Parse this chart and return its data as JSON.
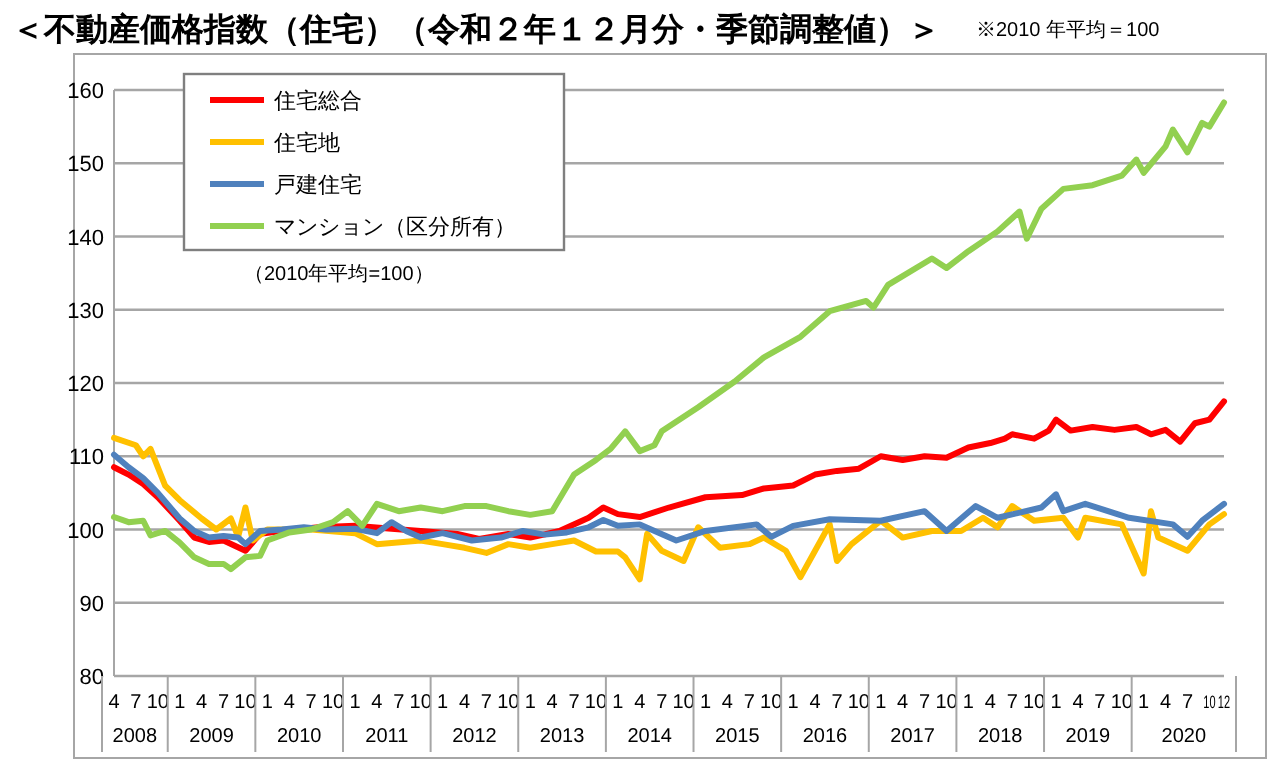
{
  "chart_data": {
    "type": "line",
    "title": "＜不動産価格指数（住宅）（令和２年１２月分・季節調整値）＞",
    "subtitle": "※2010 年平均＝100",
    "annotations": [
      "（2010年平均=100）",
      "2008",
      "2009",
      "2010",
      "2011",
      "2012",
      "2013",
      "2014",
      "2015",
      "2016",
      "2017",
      "2018",
      "2019",
      "2020"
    ],
    "xlim": [
      "2008-04",
      "2020-12"
    ],
    "xticks": [
      {
        "value": "2008-04",
        "label": "4"
      },
      {
        "value": "2008-07",
        "label": "7"
      },
      {
        "value": "2008-10",
        "label": "10"
      },
      {
        "value": "2009-01",
        "label": "1"
      },
      {
        "value": "2009-04",
        "label": "4"
      },
      {
        "value": "2009-07",
        "label": "7"
      },
      {
        "value": "2009-10",
        "label": "10"
      },
      {
        "value": "2010-01",
        "label": "1"
      },
      {
        "value": "2010-04",
        "label": "4"
      },
      {
        "value": "2010-07",
        "label": "7"
      },
      {
        "value": "2010-10",
        "label": "10"
      },
      {
        "value": "2011-01",
        "label": "1"
      },
      {
        "value": "2011-04",
        "label": "4"
      },
      {
        "value": "2011-07",
        "label": "7"
      },
      {
        "value": "2011-10",
        "label": "10"
      },
      {
        "value": "2012-01",
        "label": "1"
      },
      {
        "value": "2012-04",
        "label": "4"
      },
      {
        "value": "2012-07",
        "label": "7"
      },
      {
        "value": "2012-10",
        "label": "10"
      },
      {
        "value": "2013-01",
        "label": "1"
      },
      {
        "value": "2013-04",
        "label": "4"
      },
      {
        "value": "2013-07",
        "label": "7"
      },
      {
        "value": "2013-10",
        "label": "10"
      },
      {
        "value": "2014-01",
        "label": "1"
      },
      {
        "value": "2014-04",
        "label": "4"
      },
      {
        "value": "2014-07",
        "label": "7"
      },
      {
        "value": "2014-10",
        "label": "10"
      },
      {
        "value": "2015-01",
        "label": "1"
      },
      {
        "value": "2015-04",
        "label": "4"
      },
      {
        "value": "2015-07",
        "label": "7"
      },
      {
        "value": "2015-10",
        "label": "10"
      },
      {
        "value": "2016-01",
        "label": "1"
      },
      {
        "value": "2016-04",
        "label": "4"
      },
      {
        "value": "2016-07",
        "label": "7"
      },
      {
        "value": "2016-10",
        "label": "10"
      },
      {
        "value": "2017-01",
        "label": "1"
      },
      {
        "value": "2017-04",
        "label": "4"
      },
      {
        "value": "2017-07",
        "label": "7"
      },
      {
        "value": "2017-10",
        "label": "10"
      },
      {
        "value": "2018-01",
        "label": "1"
      },
      {
        "value": "2018-04",
        "label": "4"
      },
      {
        "value": "2018-07",
        "label": "7"
      },
      {
        "value": "2018-10",
        "label": "10"
      },
      {
        "value": "2019-01",
        "label": "1"
      },
      {
        "value": "2019-04",
        "label": "4"
      },
      {
        "value": "2019-07",
        "label": "7"
      },
      {
        "value": "2019-10",
        "label": "10"
      },
      {
        "value": "2020-01",
        "label": "1"
      },
      {
        "value": "2020-04",
        "label": "4"
      },
      {
        "value": "2020-07",
        "label": "7"
      },
      {
        "value": "2020-10",
        "label": "10"
      },
      {
        "value": "2020-12",
        "label": "12"
      }
    ],
    "ylim": [
      80,
      160
    ],
    "yticks": [
      80,
      90,
      100,
      110,
      120,
      130,
      140,
      150,
      160
    ],
    "grid": "y",
    "legend": "top left",
    "line_style": "solid",
    "series": [
      {
        "name": "住宅総合",
        "color": "#ff0000",
        "x": [
          "2008-04",
          "2008-06",
          "2008-08",
          "2008-10",
          "2009-01",
          "2009-03",
          "2009-05",
          "2009-07",
          "2009-10",
          "2009-12",
          "2010-03",
          "2010-08",
          "2011-01",
          "2011-06",
          "2011-10",
          "2012-03",
          "2012-06",
          "2012-10",
          "2013-01",
          "2013-05",
          "2013-09",
          "2013-11",
          "2014-01",
          "2014-04",
          "2014-08",
          "2015-01",
          "2015-06",
          "2015-09",
          "2016-01",
          "2016-04",
          "2016-07",
          "2016-10",
          "2017-01",
          "2017-04",
          "2017-07",
          "2017-10",
          "2018-01",
          "2018-04",
          "2018-06",
          "2018-07",
          "2018-10",
          "2018-12",
          "2019-01",
          "2019-03",
          "2019-06",
          "2019-09",
          "2019-12",
          "2020-02",
          "2020-04",
          "2020-06",
          "2020-08",
          "2020-10",
          "2020-12"
        ],
        "values": [
          108.5,
          107.5,
          106.2,
          104.4,
          101.2,
          98.9,
          98.3,
          98.5,
          97.1,
          99.4,
          99.8,
          100.3,
          100.5,
          100.1,
          99.8,
          99.4,
          98.7,
          99.4,
          98.9,
          99.8,
          101.6,
          103,
          102.1,
          101.7,
          103,
          104.4,
          104.7,
          105.6,
          106,
          107.5,
          108,
          108.3,
          110,
          109.5,
          110,
          109.8,
          111.2,
          111.8,
          112.4,
          113,
          112.4,
          113.5,
          115,
          113.5,
          114,
          113.6,
          114,
          113,
          113.6,
          112,
          114.5,
          115,
          117.5
        ]
      },
      {
        "name": "住宅地",
        "color": "#ffc000",
        "x": [
          "2008-04",
          "2008-07",
          "2008-08",
          "2008-09",
          "2008-11",
          "2009-01",
          "2009-04",
          "2009-06",
          "2009-08",
          "2009-09",
          "2009-10",
          "2009-11",
          "2010-01",
          "2010-07",
          "2011-01",
          "2011-04",
          "2011-10",
          "2012-01",
          "2012-04",
          "2012-07",
          "2012-10",
          "2013-01",
          "2013-04",
          "2013-07",
          "2013-10",
          "2014-01",
          "2014-02",
          "2014-04",
          "2014-05",
          "2014-07",
          "2014-10",
          "2014-12",
          "2015-03",
          "2015-07",
          "2015-09",
          "2015-12",
          "2016-02",
          "2016-04",
          "2016-06",
          "2016-07",
          "2016-09",
          "2017-01",
          "2017-04",
          "2017-08",
          "2017-12",
          "2018-03",
          "2018-05",
          "2018-07",
          "2018-10",
          "2019-02",
          "2019-04",
          "2019-05",
          "2019-10",
          "2020-01",
          "2020-02",
          "2020-03",
          "2020-07",
          "2020-10",
          "2020-12"
        ],
        "values": [
          112.5,
          111.5,
          110,
          111,
          106,
          104,
          101.5,
          100,
          101.5,
          99,
          103,
          98.5,
          100,
          100,
          99.5,
          98,
          98.5,
          98,
          97.5,
          96.8,
          98,
          97.5,
          98,
          98.5,
          97,
          97,
          96.2,
          93.2,
          99.4,
          97.1,
          95.7,
          100.3,
          97.5,
          98,
          98.9,
          97.1,
          93.5,
          97.1,
          100.7,
          95.7,
          98,
          101.2,
          98.9,
          99.8,
          99.8,
          101.6,
          100.3,
          103.2,
          101.2,
          101.6,
          98.9,
          101.6,
          100.7,
          94,
          102.5,
          98.9,
          97.1,
          100.7,
          102.1
        ]
      },
      {
        "name": "戸建住宅",
        "color": "#4f81bd",
        "x": [
          "2008-04",
          "2008-06",
          "2008-08",
          "2008-10",
          "2009-01",
          "2009-03",
          "2009-05",
          "2009-07",
          "2009-09",
          "2009-10",
          "2009-12",
          "2010-03",
          "2010-06",
          "2010-09",
          "2011-01",
          "2011-04",
          "2011-06",
          "2011-08",
          "2011-10",
          "2012-01",
          "2012-05",
          "2012-09",
          "2012-12",
          "2013-03",
          "2013-06",
          "2013-09",
          "2013-11",
          "2014-01",
          "2014-04",
          "2014-09",
          "2015-01",
          "2015-08",
          "2015-10",
          "2016-01",
          "2016-06",
          "2017-01",
          "2017-07",
          "2017-10",
          "2018-02",
          "2018-05",
          "2018-11",
          "2019-01",
          "2019-02",
          "2019-05",
          "2019-11",
          "2020-05",
          "2020-07",
          "2020-09",
          "2020-12"
        ],
        "values": [
          110.2,
          108.5,
          107,
          105,
          101.5,
          99.8,
          98.9,
          99.1,
          98.9,
          98,
          99.8,
          100,
          100.3,
          100,
          100.1,
          99.5,
          101,
          99.8,
          98.9,
          99.5,
          98.5,
          98.9,
          99.8,
          99.3,
          99.6,
          100.3,
          101.3,
          100.5,
          100.7,
          98.5,
          99.8,
          100.7,
          99,
          100.5,
          101.4,
          101.2,
          102.5,
          99.8,
          103.2,
          101.6,
          103,
          104.8,
          102.5,
          103.5,
          101.6,
          100.7,
          99,
          101.2,
          103.5
        ]
      },
      {
        "name": "マンション（区分所有）",
        "color": "#92d050",
        "x": [
          "2008-04",
          "2008-06",
          "2008-08",
          "2008-09",
          "2008-11",
          "2009-01",
          "2009-03",
          "2009-05",
          "2009-07",
          "2009-08",
          "2009-10",
          "2009-12",
          "2010-01",
          "2010-04",
          "2010-07",
          "2010-10",
          "2010-12",
          "2011-02",
          "2011-04",
          "2011-07",
          "2011-10",
          "2012-01",
          "2012-04",
          "2012-07",
          "2012-10",
          "2013-01",
          "2013-04",
          "2013-07",
          "2013-10",
          "2013-12",
          "2014-02",
          "2014-04",
          "2014-06",
          "2014-07",
          "2014-12",
          "2015-05",
          "2015-09",
          "2016-02",
          "2016-06",
          "2016-11",
          "2016-12",
          "2017-02",
          "2017-08",
          "2017-10",
          "2018-01",
          "2018-05",
          "2018-08",
          "2018-09",
          "2018-11",
          "2019-02",
          "2019-06",
          "2019-10",
          "2019-12",
          "2020-01",
          "2020-04",
          "2020-05",
          "2020-07",
          "2020-09",
          "2020-10",
          "2020-12"
        ],
        "values": [
          101.7,
          101,
          101.2,
          99.2,
          99.8,
          98.2,
          96.2,
          95.3,
          95.3,
          94.6,
          96.2,
          96.4,
          98.5,
          99.6,
          100,
          101,
          102.5,
          100.5,
          103.5,
          102.5,
          103,
          102.5,
          103.2,
          103.2,
          102.5,
          102,
          102.5,
          107.5,
          109.5,
          111,
          113.4,
          110.7,
          111.5,
          113.4,
          116.7,
          120.2,
          123.5,
          126.3,
          129.8,
          131.2,
          130.3,
          133.4,
          137,
          135.7,
          138,
          140.7,
          143.4,
          139.7,
          143.8,
          146.5,
          147,
          148.3,
          150.5,
          148.7,
          152.3,
          154.6,
          151.5,
          155.5,
          155,
          158.3
        ]
      }
    ]
  }
}
